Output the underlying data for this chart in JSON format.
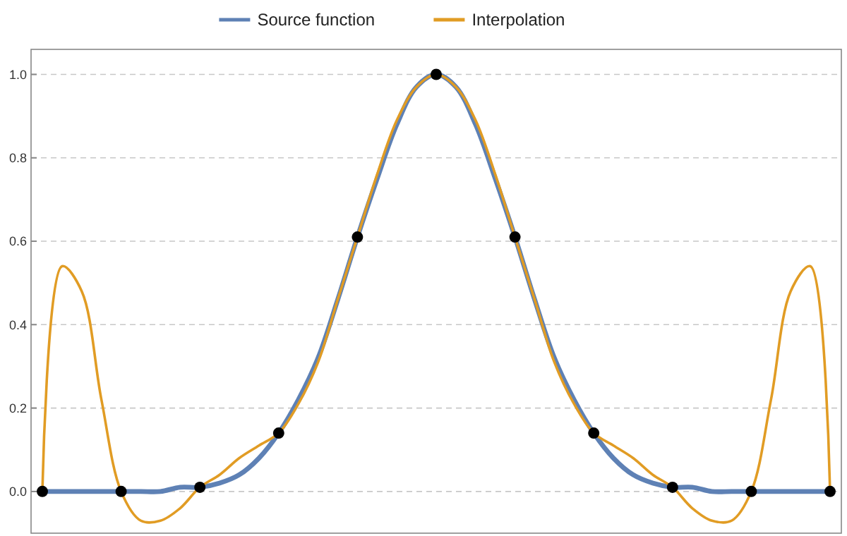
{
  "chart_data": {
    "type": "line",
    "categories": [
      null,
      null,
      null,
      null,
      null,
      null,
      null,
      null,
      null,
      null,
      null,
      null,
      null,
      null,
      null,
      null,
      null,
      null,
      null,
      null,
      null,
      null,
      null,
      null,
      null,
      null,
      null,
      null,
      null,
      null,
      null,
      null,
      null,
      null,
      null,
      null,
      null,
      null,
      null,
      null,
      null
    ],
    "series": [
      {
        "name": "Source function",
        "color": "#5e81b5",
        "values": [
          0,
          0,
          0,
          0,
          0,
          0,
          0,
          0.01,
          0.01,
          0.02,
          0.04,
          0.08,
          0.14,
          0.22,
          0.32,
          0.46,
          0.61,
          0.75,
          0.88,
          0.97,
          1,
          0.97,
          0.88,
          0.75,
          0.61,
          0.46,
          0.32,
          0.22,
          0.14,
          0.08,
          0.04,
          0.02,
          0.01,
          0.01,
          0,
          0,
          0,
          0,
          0,
          0,
          0
        ]
      },
      {
        "name": "Interpolation",
        "color": "#e19c24",
        "values": [
          0,
          0.54,
          0.48,
          0.22,
          0,
          -0.07,
          -0.07,
          -0.04,
          0.01,
          0.04,
          0.08,
          0.11,
          0.14,
          0.21,
          0.31,
          0.46,
          0.61,
          0.76,
          0.89,
          0.97,
          1,
          0.97,
          0.89,
          0.76,
          0.61,
          0.46,
          0.31,
          0.21,
          0.14,
          0.11,
          0.08,
          0.04,
          0.01,
          -0.04,
          -0.07,
          -0.07,
          0,
          0.22,
          0.48,
          0.54,
          0
        ]
      },
      {
        "type": "scatter",
        "color": "#000000",
        "marker": "circle",
        "values": [
          0,
          null,
          null,
          null,
          0,
          null,
          null,
          null,
          0.01,
          null,
          null,
          null,
          0.14,
          null,
          null,
          null,
          0.61,
          null,
          null,
          null,
          1,
          null,
          null,
          null,
          0.61,
          null,
          null,
          null,
          0.14,
          null,
          null,
          null,
          0.01,
          null,
          null,
          null,
          0,
          null,
          null,
          null,
          0
        ]
      }
    ],
    "ylim": [
      -0.1,
      1.06
    ],
    "yticks": [
      {
        "value": 0,
        "label": "0.0"
      },
      {
        "value": 0.2,
        "label": "0.2"
      },
      {
        "value": 0.4,
        "label": "0.4"
      },
      {
        "value": 0.6,
        "label": "0.6"
      },
      {
        "value": 0.8,
        "label": "0.8"
      },
      {
        "value": 1,
        "label": "1.0"
      }
    ],
    "grid": "y",
    "legend": "top"
  }
}
